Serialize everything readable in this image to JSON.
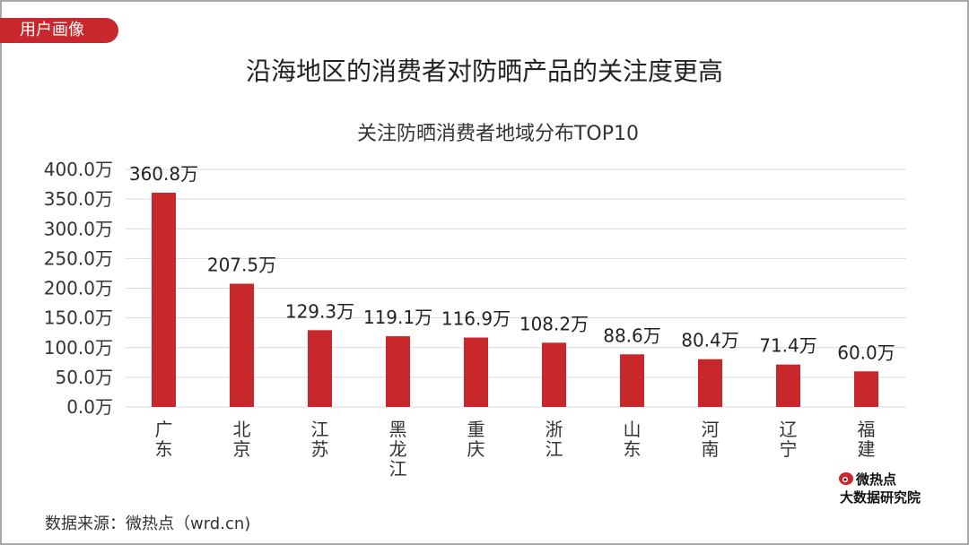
{
  "tag": "用户画像",
  "title": "沿海地区的消费者对防晒产品的关注度更高",
  "source": "数据来源：微热点（wrd.cn)",
  "logo": {
    "line1": "微热点",
    "line2": "大数据研究院"
  },
  "colors": {
    "bar": "#c8282c",
    "grid": "#d9d9d9",
    "text": "#333333"
  },
  "chart_data": {
    "type": "bar",
    "title": "关注防晒消费者地域分布TOP10",
    "categories": [
      "广东",
      "北京",
      "江苏",
      "黑龙江",
      "重庆",
      "浙江",
      "山东",
      "河南",
      "辽宁",
      "福建"
    ],
    "values": [
      360.8,
      207.5,
      129.3,
      119.1,
      116.9,
      108.2,
      88.6,
      80.4,
      71.4,
      60.0
    ],
    "data_labels": [
      "360.8万",
      "207.5万",
      "129.3万",
      "119.1万",
      "116.9万",
      "108.2万",
      "88.6万",
      "80.4万",
      "71.4万",
      "60.0万"
    ],
    "y_ticks": [
      "0.0万",
      "50.0万",
      "100.0万",
      "150.0万",
      "200.0万",
      "250.0万",
      "300.0万",
      "350.0万",
      "400.0万"
    ],
    "ylim": [
      0,
      400
    ],
    "y_step": 50,
    "grid": true,
    "xlabel": "",
    "ylabel": ""
  }
}
